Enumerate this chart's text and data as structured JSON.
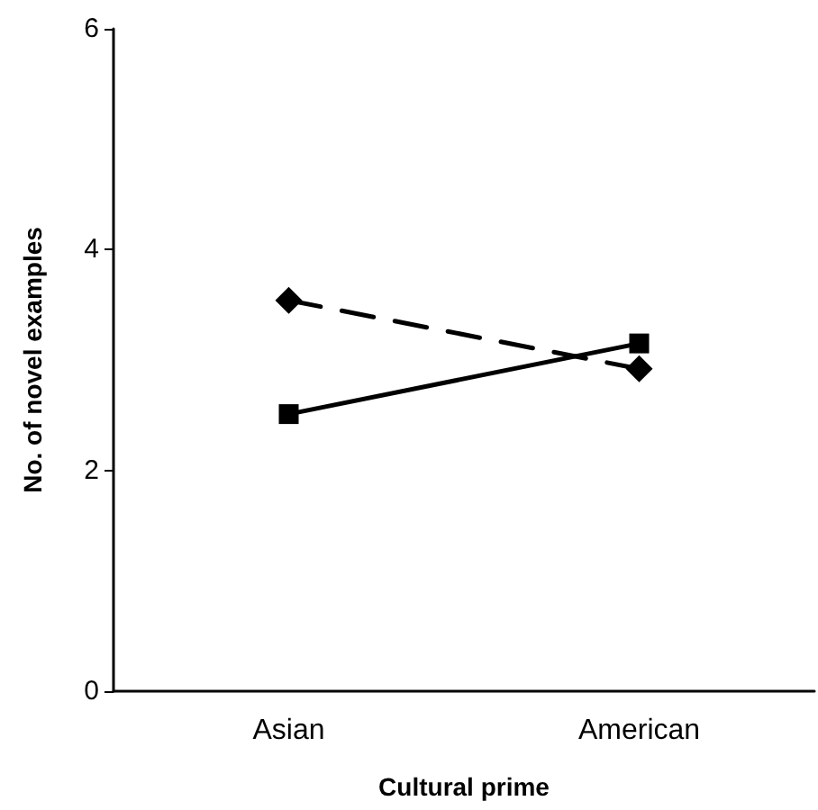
{
  "chart_data": {
    "type": "line",
    "xlabel": "Cultural prime",
    "ylabel": "No. of novel examples",
    "categories": [
      "Asian",
      "American"
    ],
    "series": [
      {
        "color": "#000000",
        "values": [
          3.54,
          2.92
        ],
        "marker": "diamond",
        "line_style": "dashed"
      },
      {
        "color": "#000000",
        "values": [
          2.51,
          3.15
        ],
        "marker": "square",
        "line_style": "solid"
      }
    ],
    "ylim": [
      0,
      6
    ],
    "yticks": [
      0,
      2,
      4,
      6
    ],
    "grid": false
  }
}
